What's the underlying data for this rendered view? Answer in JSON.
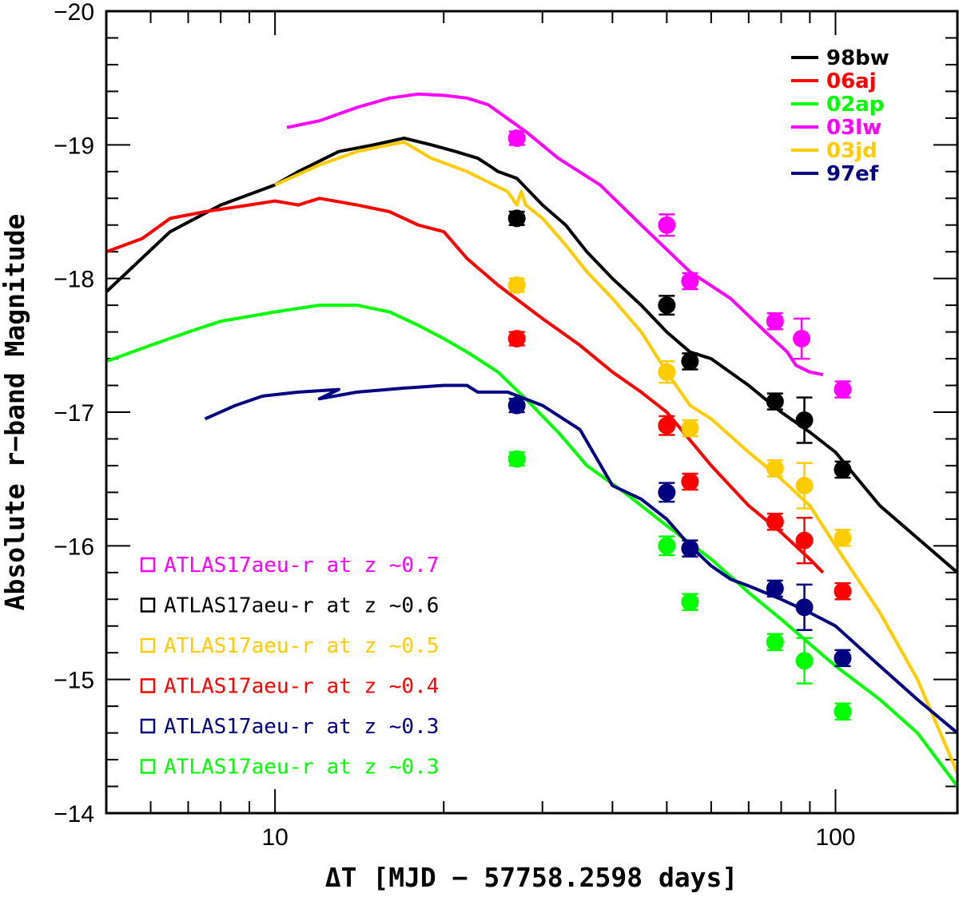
{
  "chart_data": {
    "type": "line",
    "xlabel": "ΔT [MJD − 57758.2598 days]",
    "ylabel": "Absolute r−band Magnitude",
    "xscale": "log",
    "xlim": [
      5.0,
      165.0
    ],
    "ylim": [
      -14,
      -20
    ],
    "x_tick_labels": [
      "10",
      "100"
    ],
    "y_tick_labels": [
      "−14",
      "−15",
      "−16",
      "−17",
      "−18",
      "−19",
      "−20"
    ],
    "line_series": [
      {
        "name": "98bw",
        "color": "#000000",
        "points": [
          [
            5,
            -17.9
          ],
          [
            6.5,
            -18.35
          ],
          [
            8,
            -18.55
          ],
          [
            10,
            -18.7
          ],
          [
            11,
            -18.8
          ],
          [
            13,
            -18.95
          ],
          [
            15,
            -19.0
          ],
          [
            17,
            -19.05
          ],
          [
            19,
            -19.0
          ],
          [
            21,
            -18.95
          ],
          [
            23,
            -18.9
          ],
          [
            24,
            -18.85
          ],
          [
            25,
            -18.8
          ],
          [
            27,
            -18.75
          ],
          [
            30,
            -18.55
          ],
          [
            33,
            -18.4
          ],
          [
            36,
            -18.2
          ],
          [
            40,
            -18.0
          ],
          [
            45,
            -17.8
          ],
          [
            50,
            -17.6
          ],
          [
            55,
            -17.45
          ],
          [
            60,
            -17.4
          ],
          [
            70,
            -17.2
          ],
          [
            80,
            -17.0
          ],
          [
            90,
            -16.85
          ],
          [
            100,
            -16.7
          ],
          [
            120,
            -16.3
          ],
          [
            165,
            -15.8
          ]
        ]
      },
      {
        "name": "06aj",
        "color": "#ff0000",
        "points": [
          [
            5,
            -18.2
          ],
          [
            5.8,
            -18.3
          ],
          [
            6.5,
            -18.45
          ],
          [
            7.5,
            -18.5
          ],
          [
            9,
            -18.55
          ],
          [
            10,
            -18.58
          ],
          [
            11,
            -18.55
          ],
          [
            12,
            -18.6
          ],
          [
            14,
            -18.55
          ],
          [
            16,
            -18.5
          ],
          [
            18,
            -18.4
          ],
          [
            20,
            -18.35
          ],
          [
            22,
            -18.15
          ],
          [
            25,
            -17.95
          ],
          [
            30,
            -17.7
          ],
          [
            35,
            -17.5
          ],
          [
            40,
            -17.3
          ],
          [
            45,
            -17.15
          ],
          [
            50,
            -17.0
          ],
          [
            60,
            -16.6
          ],
          [
            70,
            -16.3
          ],
          [
            80,
            -16.1
          ],
          [
            90,
            -15.9
          ],
          [
            95,
            -15.8
          ]
        ]
      },
      {
        "name": "02ap",
        "color": "#00ff00",
        "points": [
          [
            5,
            -17.38
          ],
          [
            6,
            -17.5
          ],
          [
            7,
            -17.6
          ],
          [
            8,
            -17.68
          ],
          [
            10,
            -17.75
          ],
          [
            12,
            -17.8
          ],
          [
            14,
            -17.8
          ],
          [
            16,
            -17.75
          ],
          [
            18,
            -17.65
          ],
          [
            20,
            -17.55
          ],
          [
            22,
            -17.45
          ],
          [
            25,
            -17.3
          ],
          [
            28,
            -17.1
          ],
          [
            32,
            -16.85
          ],
          [
            36,
            -16.6
          ],
          [
            42,
            -16.4
          ],
          [
            50,
            -16.15
          ],
          [
            60,
            -15.9
          ],
          [
            70,
            -15.65
          ],
          [
            80,
            -15.45
          ],
          [
            100,
            -15.1
          ],
          [
            120,
            -14.85
          ],
          [
            140,
            -14.6
          ],
          [
            165,
            -14.2
          ]
        ]
      },
      {
        "name": "03lw",
        "color": "#ff00ff",
        "points": [
          [
            10.5,
            -19.13
          ],
          [
            12,
            -19.18
          ],
          [
            14,
            -19.28
          ],
          [
            16,
            -19.35
          ],
          [
            18,
            -19.38
          ],
          [
            20,
            -19.37
          ],
          [
            22,
            -19.35
          ],
          [
            24,
            -19.3
          ],
          [
            28,
            -19.1
          ],
          [
            32,
            -18.9
          ],
          [
            38,
            -18.7
          ],
          [
            45,
            -18.4
          ],
          [
            55,
            -18.05
          ],
          [
            65,
            -17.85
          ],
          [
            75,
            -17.6
          ],
          [
            82,
            -17.45
          ],
          [
            85,
            -17.35
          ],
          [
            90,
            -17.3
          ],
          [
            95,
            -17.28
          ]
        ]
      },
      {
        "name": "03jd",
        "color": "#ffcc00",
        "points": [
          [
            10,
            -18.7
          ],
          [
            12,
            -18.85
          ],
          [
            14,
            -18.95
          ],
          [
            16,
            -19.0
          ],
          [
            17,
            -19.02
          ],
          [
            19,
            -18.9
          ],
          [
            22,
            -18.8
          ],
          [
            26,
            -18.65
          ],
          [
            27,
            -18.55
          ],
          [
            27.5,
            -18.65
          ],
          [
            28,
            -18.55
          ],
          [
            30,
            -18.45
          ],
          [
            33,
            -18.25
          ],
          [
            36,
            -18.05
          ],
          [
            40,
            -17.85
          ],
          [
            45,
            -17.6
          ],
          [
            50,
            -17.3
          ],
          [
            55,
            -17.05
          ],
          [
            60,
            -16.95
          ],
          [
            70,
            -16.7
          ],
          [
            80,
            -16.5
          ],
          [
            90,
            -16.3
          ],
          [
            100,
            -16.0
          ],
          [
            120,
            -15.5
          ],
          [
            140,
            -15.0
          ],
          [
            165,
            -14.3
          ]
        ]
      },
      {
        "name": "97ef",
        "color": "#000080",
        "points": [
          [
            7.5,
            -16.95
          ],
          [
            8.5,
            -17.05
          ],
          [
            9.5,
            -17.12
          ],
          [
            11,
            -17.15
          ],
          [
            13,
            -17.17
          ],
          [
            12,
            -17.1
          ],
          [
            14,
            -17.15
          ],
          [
            17,
            -17.18
          ],
          [
            20,
            -17.2
          ],
          [
            22,
            -17.2
          ],
          [
            23,
            -17.15
          ],
          [
            26,
            -17.15
          ],
          [
            30,
            -17.05
          ],
          [
            35,
            -16.87
          ],
          [
            40,
            -16.45
          ],
          [
            45,
            -16.35
          ],
          [
            50,
            -16.2
          ],
          [
            55,
            -16.0
          ],
          [
            60,
            -15.85
          ],
          [
            65,
            -15.75
          ],
          [
            70,
            -15.7
          ],
          [
            80,
            -15.6
          ],
          [
            90,
            -15.5
          ],
          [
            100,
            -15.4
          ],
          [
            120,
            -15.1
          ],
          [
            140,
            -14.85
          ],
          [
            165,
            -14.6
          ]
        ]
      }
    ],
    "point_series": [
      {
        "name": "ATLAS17aeu-r at z ~0.7",
        "color": "#ff00ff",
        "points": [
          [
            27,
            -19.05,
            0.05
          ],
          [
            50,
            -18.4,
            0.08
          ],
          [
            55,
            -17.98,
            0.06
          ],
          [
            78,
            -17.68,
            0.06
          ],
          [
            87,
            -17.55,
            0.15
          ],
          [
            103,
            -17.17,
            0.06
          ]
        ]
      },
      {
        "name": "ATLAS17aeu-r at z ~0.6",
        "color": "#000000",
        "points": [
          [
            27,
            -18.45,
            0.05
          ],
          [
            50,
            -17.8,
            0.07
          ],
          [
            55,
            -17.38,
            0.06
          ],
          [
            78,
            -17.08,
            0.06
          ],
          [
            88,
            -16.94,
            0.17
          ],
          [
            103,
            -16.57,
            0.06
          ]
        ]
      },
      {
        "name": "ATLAS17aeu-r at z ~0.5",
        "color": "#ffcc00",
        "points": [
          [
            27,
            -17.95,
            0.05
          ],
          [
            50,
            -17.3,
            0.08
          ],
          [
            55,
            -16.88,
            0.06
          ],
          [
            78,
            -16.58,
            0.06
          ],
          [
            88,
            -16.45,
            0.17
          ],
          [
            103,
            -16.06,
            0.06
          ]
        ]
      },
      {
        "name": "ATLAS17aeu-r at z ~0.4",
        "color": "#ff0000",
        "points": [
          [
            27,
            -17.55,
            0.05
          ],
          [
            50,
            -16.9,
            0.07
          ],
          [
            55,
            -16.48,
            0.06
          ],
          [
            78,
            -16.18,
            0.06
          ],
          [
            88,
            -16.04,
            0.17
          ],
          [
            103,
            -15.66,
            0.06
          ]
        ]
      },
      {
        "name": "ATLAS17aeu-r at z ~0.3",
        "color": "#000080",
        "points": [
          [
            27,
            -17.05,
            0.05
          ],
          [
            50,
            -16.4,
            0.07
          ],
          [
            55,
            -15.98,
            0.06
          ],
          [
            78,
            -15.68,
            0.06
          ],
          [
            88,
            -15.54,
            0.17
          ],
          [
            103,
            -15.16,
            0.06
          ]
        ]
      },
      {
        "name": "ATLAS17aeu-r at z ~0.3",
        "color": "#00ff00",
        "points": [
          [
            27,
            -16.65,
            0.05
          ],
          [
            50,
            -16.0,
            0.07
          ],
          [
            55,
            -15.58,
            0.06
          ],
          [
            78,
            -15.28,
            0.06
          ],
          [
            88,
            -15.14,
            0.17
          ],
          [
            103,
            -14.76,
            0.06
          ]
        ]
      }
    ],
    "legend_lines_position": "top-right",
    "legend_points_position": "bottom-left",
    "grid": false
  }
}
